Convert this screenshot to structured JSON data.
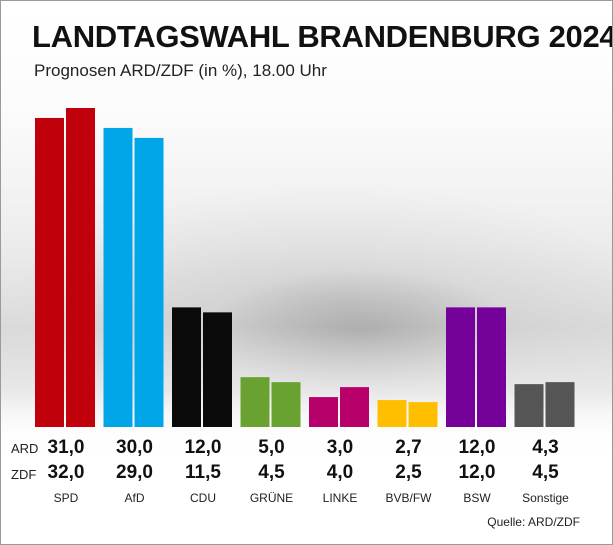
{
  "title": "LANDTAGSWAHL BRANDENBURG 2024",
  "subtitle": "Prognosen ARD/ZDF (in %), 18.00 Uhr",
  "row_labels": {
    "ard": "ARD",
    "zdf": "ZDF"
  },
  "source": "Quelle: ARD/ZDF",
  "chart_data": {
    "type": "bar",
    "categories": [
      "SPD",
      "AfD",
      "CDU",
      "GRÜNE",
      "LINKE",
      "BVB/FW",
      "BSW",
      "Sonstige"
    ],
    "series": [
      {
        "name": "ARD",
        "values": [
          31.0,
          30.0,
          12.0,
          5.0,
          3.0,
          2.7,
          12.0,
          4.3
        ]
      },
      {
        "name": "ZDF",
        "values": [
          32.0,
          29.0,
          11.5,
          4.5,
          4.0,
          2.5,
          12.0,
          4.5
        ]
      }
    ],
    "value_labels": {
      "ARD": [
        "31,0",
        "30,0",
        "12,0",
        "5,0",
        "3,0",
        "2,7",
        "12,0",
        "4,3"
      ],
      "ZDF": [
        "32,0",
        "29,0",
        "11,5",
        "4,5",
        "4,0",
        "2,5",
        "12,0",
        "4,5"
      ]
    },
    "colors": [
      "#c0000b",
      "#00a6e8",
      "#0a0a0a",
      "#6aa232",
      "#b8006b",
      "#ffbf00",
      "#76009a",
      "#555555"
    ],
    "ylim": [
      0,
      32
    ],
    "grid": false,
    "legend": "none"
  }
}
